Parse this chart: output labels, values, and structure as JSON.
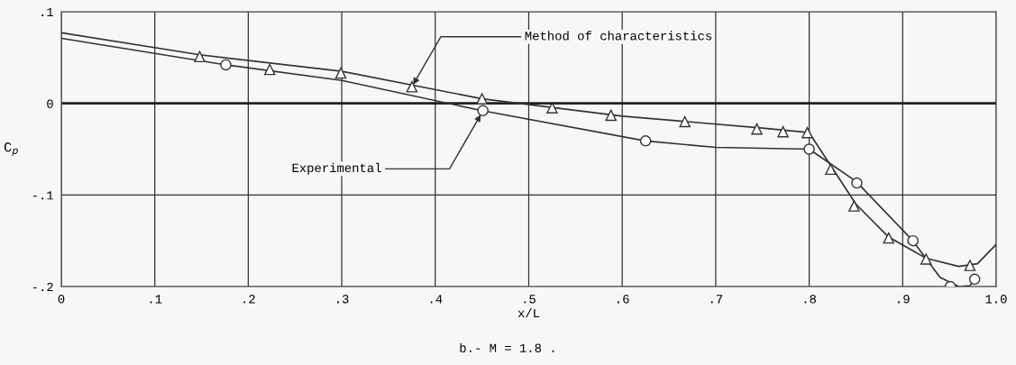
{
  "chart_data": {
    "type": "line",
    "xlabel": "x/L",
    "ylabel": "C$_{p}$",
    "xlim": [
      0,
      1.0
    ],
    "ylim": [
      -0.2,
      0.1
    ],
    "xticks": [
      0,
      {
        "value": 0.1,
        "label": ".1"
      },
      {
        "value": 0.2,
        "label": ".2"
      },
      {
        "value": 0.3,
        "label": ".3"
      },
      {
        "value": 0.4,
        "label": ".4"
      },
      {
        "value": 0.5,
        "label": ".5"
      },
      {
        "value": 0.6,
        "label": ".6"
      },
      {
        "value": 0.7,
        "label": ".7"
      },
      {
        "value": 0.8,
        "label": ".8"
      },
      {
        "value": 0.9,
        "label": ".9"
      },
      {
        "value": 1.0,
        "label": "1.0"
      }
    ],
    "yticks": [
      {
        "value": 0.1,
        "label": ".1"
      },
      0,
      {
        "value": -0.1,
        "label": "-.1"
      },
      {
        "value": -0.2,
        "label": "-.2"
      }
    ],
    "grid": true,
    "ref_lines": [
      {
        "axis": "y",
        "value": 0,
        "color": "#222222"
      }
    ],
    "series": [
      {
        "color": "#333333",
        "marker": "none",
        "x": [
          0,
          0.148,
          0.3,
          0.45,
          0.6,
          0.75,
          0.8,
          0.85,
          0.885,
          0.925,
          0.96,
          0.98,
          1.0
        ],
        "values": [
          0.077,
          0.053,
          0.035,
          0.005,
          -0.014,
          -0.027,
          -0.032,
          -0.11,
          -0.146,
          -0.169,
          -0.178,
          -0.175,
          -0.154
        ]
      },
      {
        "color": "#333333",
        "marker": "none",
        "x": [
          0,
          0.176,
          0.3,
          0.45,
          0.625,
          0.7,
          0.8,
          0.85,
          0.91,
          0.94,
          0.96,
          0.972,
          0.977
        ],
        "values": [
          0.071,
          0.042,
          0.025,
          -0.008,
          -0.041,
          -0.048,
          -0.05,
          -0.085,
          -0.149,
          -0.19,
          -0.2,
          -0.199,
          -0.192
        ]
      },
      {
        "type": "scatter",
        "color": "#333333",
        "marker": "triangle",
        "x": [
          0.148,
          0.223,
          0.299,
          0.375,
          0.45,
          0.525,
          0.588,
          0.667,
          0.744,
          0.772,
          0.798,
          0.823,
          0.848,
          0.885,
          0.925,
          0.972
        ],
        "values": [
          0.051,
          0.037,
          0.033,
          0.018,
          0.005,
          -0.005,
          -0.013,
          -0.02,
          -0.028,
          -0.031,
          -0.032,
          -0.072,
          -0.112,
          -0.147,
          -0.17,
          -0.177
        ]
      },
      {
        "type": "scatter",
        "color": "#333333",
        "marker": "circle",
        "x": [
          0.176,
          0.451,
          0.625,
          0.8,
          0.851,
          0.911,
          0.951,
          0.977
        ],
        "values": [
          0.042,
          -0.008,
          -0.041,
          -0.05,
          -0.087,
          -0.15,
          -0.2,
          -0.192
        ]
      }
    ],
    "annotations": [
      {
        "text": "Method of characteristics",
        "x": 0.375,
        "y": 0.018
      },
      {
        "text": "Experimental",
        "x": 0.45,
        "y": -0.01
      },
      "b.- M = 1.8 ."
    ]
  }
}
